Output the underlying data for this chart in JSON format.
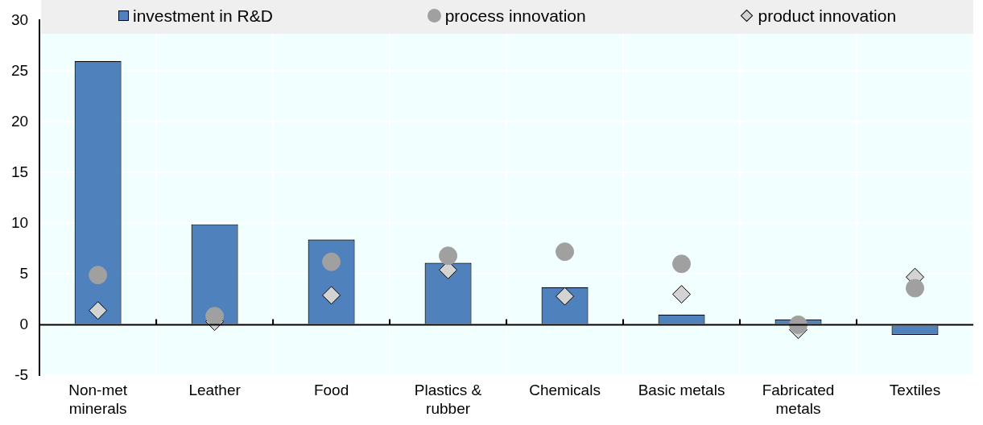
{
  "chart_data": {
    "type": "bar",
    "categories": [
      "Non-met minerals",
      "Leather",
      "Food",
      "Plastics & rubber",
      "Chemicals",
      "Basic metals",
      "Fabricated metals",
      "Textiles"
    ],
    "series": [
      {
        "name": "investment in R&D",
        "color": "#4f81bd",
        "values": [
          26,
          9.9,
          8.4,
          6.1,
          3.7,
          1.0,
          0.5,
          -1.0
        ]
      },
      {
        "name": "process innovation",
        "type": "scatter",
        "marker": "circle",
        "color": "#a0a0a0",
        "values": [
          4.9,
          0.85,
          6.2,
          6.8,
          7.2,
          6.0,
          0,
          3.6
        ]
      },
      {
        "name": "product innovation",
        "type": "scatter",
        "marker": "diamond",
        "color": "#d3d3d3",
        "values": [
          1.4,
          0.3,
          2.9,
          5.4,
          2.8,
          3.0,
          -0.5,
          4.7
        ]
      }
    ],
    "ylim": [
      -5,
      30
    ],
    "yticks": [
      -5,
      0,
      5,
      10,
      15,
      20,
      25,
      30
    ],
    "grid": true,
    "legend": "top"
  }
}
